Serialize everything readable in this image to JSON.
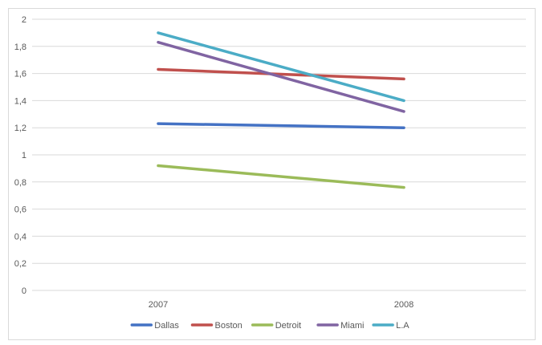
{
  "chart_data": {
    "type": "line",
    "categories": [
      "2007",
      "2008"
    ],
    "ylim": [
      0,
      2
    ],
    "yticks": [
      0,
      0.2,
      0.4,
      0.6,
      0.8,
      1,
      1.2,
      1.4,
      1.6,
      1.8,
      2
    ],
    "ytick_labels": [
      "0",
      "0,2",
      "0,4",
      "0,6",
      "0,8",
      "1",
      "1,2",
      "1,4",
      "1,6",
      "1,8",
      "2"
    ],
    "grid": true,
    "legend_position": "bottom",
    "series": [
      {
        "name": "Dallas",
        "color": "#4472c4",
        "values": [
          1.23,
          1.2
        ]
      },
      {
        "name": "Boston",
        "color": "#c0504d",
        "values": [
          1.63,
          1.56
        ]
      },
      {
        "name": "Detroit",
        "color": "#9bbb59",
        "values": [
          0.92,
          0.76
        ]
      },
      {
        "name": "Miami",
        "color": "#8064a2",
        "values": [
          1.83,
          1.32
        ]
      },
      {
        "name": "L.A",
        "color": "#4bacc6",
        "values": [
          1.9,
          1.4
        ]
      }
    ]
  }
}
